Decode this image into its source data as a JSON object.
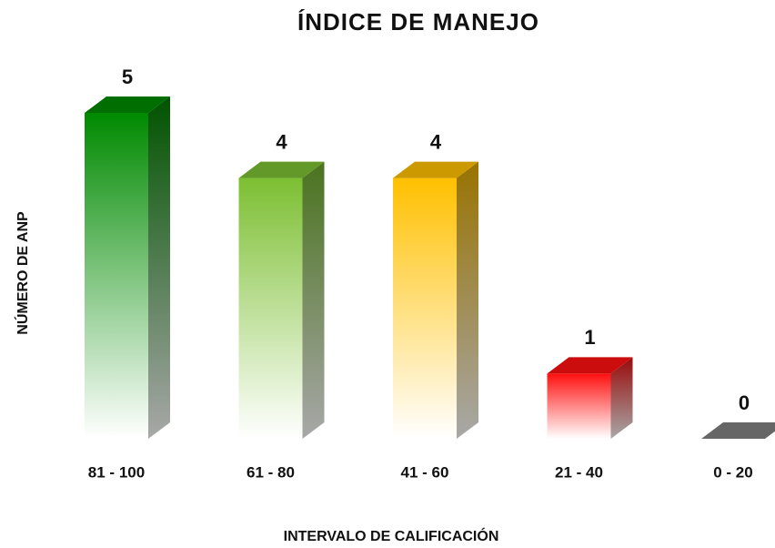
{
  "chart_data": {
    "type": "bar",
    "title": "ÍNDICE DE  MANEJO",
    "x_label": "INTERVALO DE CALIFICACIÓN",
    "y_label": "NÚMERO DE ANP",
    "categories": [
      "81 - 100",
      "61 - 80",
      "41 - 60",
      "21 - 40",
      "0 - 20"
    ],
    "values": [
      5,
      4,
      4,
      1,
      0
    ],
    "colors": [
      "#008a00",
      "#7cbf32",
      "#ffc000",
      "#ff1010",
      "#808080"
    ]
  }
}
